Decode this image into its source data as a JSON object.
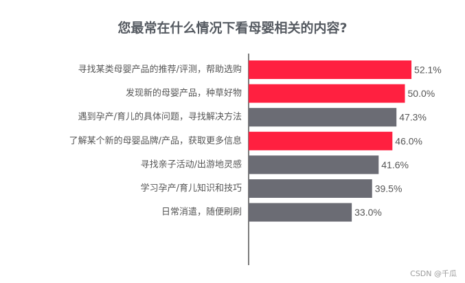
{
  "chart_data": {
    "type": "bar",
    "orientation": "horizontal",
    "title": "您最常在什么情况下看母婴相关的内容?",
    "categories": [
      "寻找某类母婴产品的推荐/评测，帮助选购",
      "发现新的母婴产品，种草好物",
      "遇到孕产/育儿的具体问题，寻找解决方法",
      "了解某个新的母婴品牌/产品，获取更多信息",
      "寻找亲子活动/出游地灵感",
      "学习孕产/育儿知识和技巧",
      "日常消遣，随便刷刷"
    ],
    "values": [
      52.1,
      50.0,
      47.3,
      46.0,
      41.6,
      39.5,
      33.0
    ],
    "value_labels": [
      "52.1%",
      "50.0%",
      "47.3%",
      "46.0%",
      "41.6%",
      "39.5%",
      "33.0%"
    ],
    "highlighted": [
      true,
      true,
      false,
      true,
      false,
      false,
      false
    ],
    "colors": {
      "highlight": "#ff2040",
      "default": "#6b6c74",
      "axis": "#333333",
      "label": "#555555"
    },
    "grid": false,
    "legend": "none"
  },
  "watermark": "CSDN @千瓜"
}
